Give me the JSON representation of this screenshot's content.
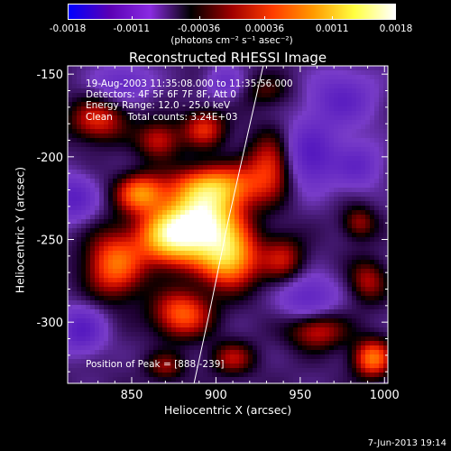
{
  "colorbar": {
    "ticks": [
      "-0.0018",
      "-0.0011",
      "-0.00036",
      "0.00036",
      "0.0011",
      "0.0018"
    ],
    "tick_values": [
      -0.0018,
      -0.0011,
      -0.00036,
      0.00036,
      0.0011,
      0.0018
    ],
    "range": [
      -0.0018,
      0.0018
    ],
    "unit_label": "(photons cm⁻² s⁻¹ asec⁻²)",
    "colors": [
      "#0000ff",
      "#5a00b4",
      "#8a2be2",
      "#000000",
      "#a00000",
      "#ff3c00",
      "#ff9a00",
      "#ffff40",
      "#ffffff"
    ]
  },
  "chart_data": {
    "type": "heatmap",
    "title": "Reconstructed RHESSI Image",
    "xlabel": "Heliocentric X (arcsec)",
    "ylabel": "Heliocentric Y (arcsec)",
    "xlim": [
      812,
      1002
    ],
    "ylim": [
      -337,
      -145
    ],
    "xticks": [
      850,
      900,
      950,
      1000
    ],
    "yticks": [
      -150,
      -200,
      -250,
      -300
    ],
    "peak": [
      888,
      -239
    ],
    "limb_curve": [
      [
        928,
        -145
      ],
      [
        918,
        -190
      ],
      [
        907,
        -240
      ],
      [
        897,
        -290
      ],
      [
        887,
        -337
      ]
    ],
    "sources": [
      {
        "x": 893,
        "y": -240,
        "sx": 15,
        "sy": 14,
        "amp": 1.0
      },
      {
        "x": 872,
        "y": -248,
        "sx": 13,
        "sy": 12,
        "amp": 0.78
      },
      {
        "x": 908,
        "y": -262,
        "sx": 12,
        "sy": 12,
        "amp": 0.72
      },
      {
        "x": 900,
        "y": -218,
        "sx": 18,
        "sy": 9,
        "amp": 0.62
      },
      {
        "x": 855,
        "y": -222,
        "sx": 10,
        "sy": 8,
        "amp": 0.6
      },
      {
        "x": 840,
        "y": -265,
        "sx": 12,
        "sy": 14,
        "amp": 0.58
      },
      {
        "x": 880,
        "y": -295,
        "sx": 12,
        "sy": 10,
        "amp": 0.55
      },
      {
        "x": 933,
        "y": -205,
        "sx": 10,
        "sy": 13,
        "amp": 0.48
      },
      {
        "x": 830,
        "y": -178,
        "sx": 12,
        "sy": 9,
        "amp": 0.42
      },
      {
        "x": 866,
        "y": -190,
        "sx": 9,
        "sy": 8,
        "amp": 0.38
      },
      {
        "x": 893,
        "y": -183,
        "sx": 9,
        "sy": 8,
        "amp": 0.42
      },
      {
        "x": 940,
        "y": -262,
        "sx": 9,
        "sy": 10,
        "amp": 0.35
      },
      {
        "x": 960,
        "y": -305,
        "sx": 12,
        "sy": 8,
        "amp": 0.4
      },
      {
        "x": 993,
        "y": -322,
        "sx": 8,
        "sy": 8,
        "amp": 0.6
      },
      {
        "x": 990,
        "y": -275,
        "sx": 8,
        "sy": 9,
        "amp": 0.33
      },
      {
        "x": 985,
        "y": -240,
        "sx": 7,
        "sy": 7,
        "amp": 0.3
      },
      {
        "x": 910,
        "y": -322,
        "sx": 9,
        "sy": 7,
        "amp": 0.33
      },
      {
        "x": 870,
        "y": -327,
        "sx": 8,
        "sy": 6,
        "amp": 0.28
      },
      {
        "x": 930,
        "y": -160,
        "sx": 10,
        "sy": 7,
        "amp": 0.2
      },
      {
        "x": 955,
        "y": -200,
        "sx": 12,
        "sy": 14,
        "amp": -0.45
      },
      {
        "x": 975,
        "y": -165,
        "sx": 14,
        "sy": 12,
        "amp": -0.35
      },
      {
        "x": 955,
        "y": -285,
        "sx": 12,
        "sy": 10,
        "amp": -0.35
      },
      {
        "x": 815,
        "y": -225,
        "sx": 10,
        "sy": 10,
        "amp": -0.38
      },
      {
        "x": 820,
        "y": -305,
        "sx": 10,
        "sy": 10,
        "amp": -0.4
      },
      {
        "x": 845,
        "y": -155,
        "sx": 12,
        "sy": 8,
        "amp": -0.3
      },
      {
        "x": 985,
        "y": -205,
        "sx": 10,
        "sy": 10,
        "amp": -0.3
      },
      {
        "x": 905,
        "y": -155,
        "sx": 8,
        "sy": 7,
        "amp": -0.25
      }
    ]
  },
  "info": {
    "line1": "19-Aug-2003 11:35:08.000 to 11:35:56.000",
    "line2": "Detectors: 4F 5F 6F 7F 8F, Att 0",
    "line3": "Energy Range: 12.0 - 25.0 keV",
    "line4": "Clean     Total counts: 3.24E+03"
  },
  "peak_text": "Position of Peak = [888,-239]",
  "footer_date": "7-Jun-2013 19:14"
}
